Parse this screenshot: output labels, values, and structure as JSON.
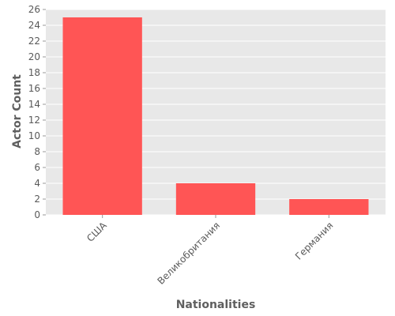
{
  "chart_data": {
    "type": "bar",
    "title": "",
    "xlabel": "Nationalities",
    "ylabel": "Actor Count",
    "categories": [
      "США",
      "Великобритания",
      "Германия"
    ],
    "values": [
      25,
      4,
      2
    ],
    "ylim": [
      0,
      26
    ],
    "yticks": [
      0,
      2,
      4,
      6,
      8,
      10,
      12,
      14,
      16,
      18,
      20,
      22,
      24,
      26
    ],
    "grid": true,
    "legend": "none",
    "colors": {
      "bar": "#ff5555",
      "plot_background": "#e8e8e8",
      "grid": "#ffffff",
      "text": "#595959"
    }
  }
}
